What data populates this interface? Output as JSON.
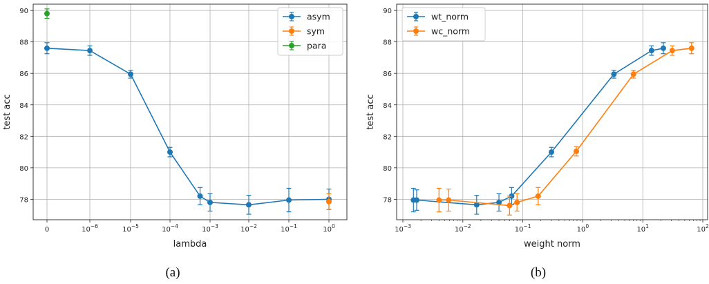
{
  "chart_data": [
    {
      "panel_caption": "(a)",
      "type": "line",
      "xlabel": "lambda",
      "ylabel": "test acc",
      "ylim": [
        76.7,
        90.4
      ],
      "y_ticks": [
        78,
        80,
        82,
        84,
        86,
        88,
        90
      ],
      "x_tick_labels": [
        {
          "base": "0",
          "exp": ""
        },
        {
          "base": "10",
          "exp": "−6"
        },
        {
          "base": "10",
          "exp": "−5"
        },
        {
          "base": "10",
          "exp": "−4"
        },
        {
          "base": "10",
          "exp": "−3"
        },
        {
          "base": "10",
          "exp": "−2"
        },
        {
          "base": "10",
          "exp": "−1"
        },
        {
          "base": "10",
          "exp": "0"
        }
      ],
      "grid": true,
      "legend_position": "top-right",
      "series": [
        {
          "name": "asym",
          "color": "#1f77b4",
          "x": [
            0,
            1,
            2,
            3,
            3.75,
            4,
            5,
            6,
            7
          ],
          "y": [
            87.6,
            87.45,
            85.95,
            81.0,
            78.2,
            77.8,
            77.65,
            77.95,
            78.0
          ],
          "err": [
            0.35,
            0.3,
            0.25,
            0.3,
            0.55,
            0.55,
            0.6,
            0.75,
            0.65
          ]
        },
        {
          "name": "sym",
          "color": "#ff7f0e",
          "x": [
            7
          ],
          "y": [
            77.85
          ],
          "err": [
            0.5
          ]
        },
        {
          "name": "para",
          "color": "#2ca02c",
          "x": [
            0
          ],
          "y": [
            89.8
          ],
          "err": [
            0.3
          ]
        }
      ]
    },
    {
      "panel_caption": "(b)",
      "type": "line",
      "xlabel": "weight norm",
      "ylabel": "test acc",
      "x_scale": "log",
      "xlim": [
        0.001,
        100
      ],
      "ylim": [
        76.7,
        90.4
      ],
      "y_ticks": [
        78,
        80,
        82,
        84,
        86,
        88,
        90
      ],
      "x_ticks": [
        0.001,
        0.01,
        0.1,
        1,
        10,
        100
      ],
      "x_tick_labels": [
        {
          "base": "10",
          "exp": "−3"
        },
        {
          "base": "10",
          "exp": "−2"
        },
        {
          "base": "10",
          "exp": "−1"
        },
        {
          "base": "10",
          "exp": "0"
        },
        {
          "base": "10",
          "exp": "1"
        },
        {
          "base": "10",
          "exp": "2"
        }
      ],
      "grid": true,
      "legend_position": "top-left",
      "series": [
        {
          "name": "wt_norm",
          "color": "#1f77b4",
          "x": [
            0.0015,
            0.0017,
            0.017,
            0.04,
            0.065,
            0.3,
            3.3,
            14,
            22
          ],
          "y": [
            77.95,
            77.95,
            77.65,
            77.8,
            78.2,
            81.0,
            85.95,
            87.45,
            87.6
          ],
          "err": [
            0.75,
            0.65,
            0.6,
            0.55,
            0.55,
            0.3,
            0.25,
            0.3,
            0.35
          ]
        },
        {
          "name": "wc_norm",
          "color": "#ff7f0e",
          "x": [
            0.004,
            0.0058,
            0.06,
            0.08,
            0.18,
            0.78,
            7,
            31,
            65
          ],
          "y": [
            77.95,
            77.95,
            77.6,
            77.8,
            78.2,
            81.05,
            85.95,
            87.45,
            87.6
          ],
          "err": [
            0.75,
            0.7,
            0.6,
            0.55,
            0.55,
            0.3,
            0.25,
            0.3,
            0.35
          ]
        }
      ]
    }
  ]
}
